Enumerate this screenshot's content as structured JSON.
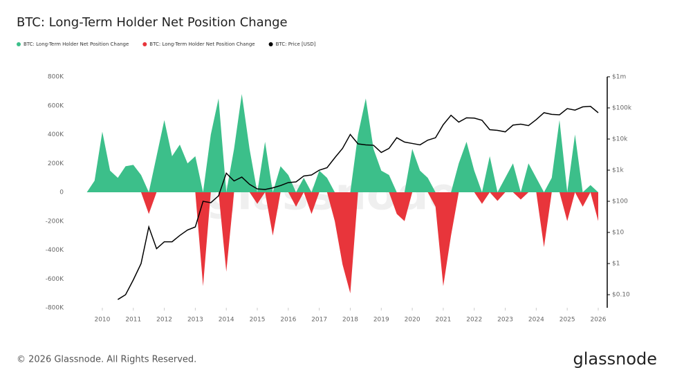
{
  "chart_data": {
    "type": "area",
    "title": "BTC: Long-Term Holder Net Position Change",
    "watermark": "glassnode",
    "footer": "© 2026 Glassnode. All Rights Reserved.",
    "brand": "glassnode",
    "x": [
      2009.5,
      2009.75,
      2010.0,
      2010.25,
      2010.5,
      2010.75,
      2011.0,
      2011.25,
      2011.5,
      2011.75,
      2012.0,
      2012.25,
      2012.5,
      2012.75,
      2013.0,
      2013.25,
      2013.5,
      2013.75,
      2014.0,
      2014.25,
      2014.5,
      2014.75,
      2015.0,
      2015.25,
      2015.5,
      2015.75,
      2016.0,
      2016.25,
      2016.5,
      2016.75,
      2017.0,
      2017.25,
      2017.5,
      2017.75,
      2018.0,
      2018.25,
      2018.5,
      2018.75,
      2019.0,
      2019.25,
      2019.5,
      2019.75,
      2020.0,
      2020.25,
      2020.5,
      2020.75,
      2021.0,
      2021.25,
      2021.5,
      2021.75,
      2022.0,
      2022.25,
      2022.5,
      2022.75,
      2023.0,
      2023.25,
      2023.5,
      2023.75,
      2024.0,
      2024.25,
      2024.5,
      2024.75,
      2025.0,
      2025.25,
      2025.5,
      2025.75,
      2026.0
    ],
    "series": [
      {
        "name": "BTC: Long-Term Holder Net Position Change",
        "color": "#3cbf8a",
        "values": [
          0,
          80000,
          420000,
          150000,
          100000,
          180000,
          190000,
          120000,
          0,
          250000,
          500000,
          250000,
          330000,
          200000,
          250000,
          0,
          400000,
          650000,
          0,
          300000,
          680000,
          300000,
          0,
          350000,
          0,
          180000,
          120000,
          0,
          100000,
          0,
          150000,
          100000,
          0,
          0,
          0,
          400000,
          650000,
          300000,
          150000,
          120000,
          0,
          0,
          300000,
          150000,
          100000,
          0,
          0,
          0,
          200000,
          350000,
          150000,
          0,
          250000,
          0,
          100000,
          200000,
          0,
          200000,
          100000,
          0,
          100000,
          500000,
          0,
          400000,
          0,
          50000,
          0
        ]
      },
      {
        "name": "BTC: Long-Term Holder Net Position Change",
        "color": "#e8353b",
        "values": [
          0,
          0,
          0,
          0,
          0,
          0,
          0,
          0,
          -150000,
          0,
          0,
          0,
          0,
          0,
          0,
          -650000,
          0,
          0,
          -550000,
          0,
          0,
          0,
          -80000,
          0,
          -300000,
          0,
          0,
          -100000,
          0,
          -150000,
          0,
          0,
          -200000,
          -500000,
          -700000,
          0,
          0,
          0,
          0,
          0,
          -150000,
          -200000,
          0,
          0,
          0,
          -100000,
          -650000,
          -300000,
          0,
          0,
          0,
          -80000,
          0,
          -60000,
          0,
          0,
          -50000,
          0,
          0,
          -380000,
          0,
          0,
          -200000,
          0,
          -100000,
          0,
          -200000
        ]
      },
      {
        "name": "BTC: Price [USD]",
        "color": "#000000",
        "axis": "y2",
        "chart": "line",
        "values": [
          null,
          null,
          null,
          null,
          0.07,
          0.1,
          0.3,
          1,
          15,
          3,
          5,
          5,
          8,
          12,
          15,
          100,
          90,
          150,
          800,
          450,
          600,
          350,
          250,
          240,
          270,
          320,
          400,
          420,
          650,
          700,
          1000,
          1200,
          2500,
          5000,
          14000,
          7000,
          6500,
          6300,
          3700,
          5000,
          11000,
          8000,
          7200,
          6500,
          9200,
          11000,
          29000,
          58000,
          35000,
          48000,
          47000,
          40000,
          20000,
          19000,
          17000,
          28000,
          30000,
          27000,
          42000,
          70000,
          62000,
          60000,
          95000,
          85000,
          108000,
          112000,
          70000
        ]
      }
    ],
    "xlim": [
      2008.93,
      2026.29
    ],
    "xticks": [
      2010,
      2011,
      2012,
      2013,
      2014,
      2015,
      2016,
      2017,
      2018,
      2019,
      2020,
      2021,
      2022,
      2023,
      2024,
      2025,
      2026
    ],
    "ylim": [
      -800000,
      800000
    ],
    "yticks": [
      {
        "value": -800000,
        "label": "-800K"
      },
      {
        "value": -600000,
        "label": "-600K"
      },
      {
        "value": -400000,
        "label": "-400K"
      },
      {
        "value": -200000,
        "label": "-200K"
      },
      0,
      {
        "value": 200000,
        "label": "200K"
      },
      {
        "value": 400000,
        "label": "400K"
      },
      {
        "value": 600000,
        "label": "600K"
      },
      {
        "value": 800000,
        "label": "800K"
      }
    ],
    "y2lim": [
      0.038,
      1000000
    ],
    "y2log": true,
    "y2ticks": [
      {
        "value": 0.1,
        "label": "$0.10"
      },
      {
        "value": 1,
        "label": "$1"
      },
      {
        "value": 10,
        "label": "$10"
      },
      {
        "value": 100,
        "label": "$100"
      },
      {
        "value": 1000,
        "label": "$1k"
      },
      {
        "value": 10000,
        "label": "$10k"
      },
      {
        "value": 100000,
        "label": "$100k"
      },
      {
        "value": 1000000,
        "label": "$1m"
      }
    ],
    "legend": "top-left"
  }
}
